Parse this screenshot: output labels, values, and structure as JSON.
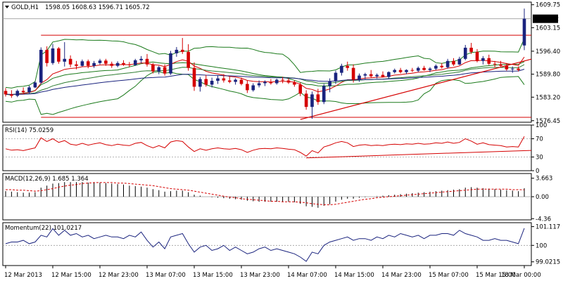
{
  "colors": {
    "background": "#ffffff",
    "frame": "#000000",
    "bull_candle": "#1a237e",
    "bear_candle": "#d50000",
    "bollinger": "#1b7a1b",
    "ma_fast": "#d50000",
    "ma_mid": "#2e7d32",
    "ma_slow": "#1a237e",
    "trendline": "#d50000",
    "rsi_line": "#d50000",
    "macd_hist": "#000000",
    "macd_signal": "#d50000",
    "momentum_line": "#1a237e",
    "level_line": "#9e9e9e",
    "price_tag_bg": "#000000",
    "price_tag_text": "#ffffff"
  },
  "chart_data": {
    "type": "candlestick",
    "symbol_label": "GOLD,H1",
    "ohlc_label": "1598.05 1608.63 1596.71 1605.72",
    "current_price": 1605.72,
    "current_price_label": "1605.72",
    "time_labels": [
      "12 Mar 2013",
      "12 Mar 15:00",
      "12 Mar 23:00",
      "13 Mar 07:00",
      "13 Mar 15:00",
      "13 Mar 23:00",
      "14 Mar 07:00",
      "14 Mar 15:00",
      "14 Mar 23:00",
      "15 Mar 07:00",
      "15 Mar 15:00",
      "18 Mar 00:00"
    ],
    "price_panel": {
      "ylim": [
        1576.0,
        1610.5
      ],
      "ticks": [
        1609.75,
        1603.15,
        1596.4,
        1589.8,
        1583.2,
        1576.45
      ],
      "tick_labels": [
        "1609.75",
        "1603.15",
        "1596.40",
        "1589.80",
        "1583.20",
        "1576.45"
      ],
      "candles": [
        [
          1585.0,
          1585.8,
          1583.4,
          1584.0
        ],
        [
          1584.0,
          1585.2,
          1583.0,
          1583.6
        ],
        [
          1583.6,
          1585.4,
          1583.2,
          1585.0
        ],
        [
          1585.0,
          1586.0,
          1584.0,
          1584.6
        ],
        [
          1584.6,
          1586.5,
          1584.2,
          1586.0
        ],
        [
          1586.0,
          1587.8,
          1585.8,
          1587.4
        ],
        [
          1587.4,
          1597.5,
          1587.0,
          1596.8
        ],
        [
          1596.8,
          1597.8,
          1592.0,
          1593.0
        ],
        [
          1593.0,
          1598.5,
          1592.5,
          1597.2
        ],
        [
          1597.2,
          1597.6,
          1592.8,
          1593.4
        ],
        [
          1593.4,
          1599.0,
          1592.0,
          1594.2
        ],
        [
          1594.2,
          1595.2,
          1591.8,
          1592.6
        ],
        [
          1592.6,
          1593.6,
          1591.2,
          1592.2
        ],
        [
          1592.2,
          1594.0,
          1592.0,
          1593.5
        ],
        [
          1593.5,
          1594.0,
          1591.5,
          1592.2
        ],
        [
          1592.2,
          1593.6,
          1591.6,
          1593.0
        ],
        [
          1593.0,
          1594.2,
          1592.6,
          1593.7
        ],
        [
          1593.7,
          1594.2,
          1592.2,
          1592.8
        ],
        [
          1592.8,
          1593.4,
          1591.6,
          1592.2
        ],
        [
          1592.2,
          1593.5,
          1591.8,
          1593.0
        ],
        [
          1593.0,
          1593.8,
          1592.2,
          1592.6
        ],
        [
          1592.6,
          1593.3,
          1591.8,
          1592.4
        ],
        [
          1592.4,
          1594.2,
          1592.2,
          1593.8
        ],
        [
          1593.8,
          1595.0,
          1593.0,
          1594.2
        ],
        [
          1594.2,
          1595.6,
          1592.0,
          1592.6
        ],
        [
          1592.6,
          1593.0,
          1590.0,
          1590.6
        ],
        [
          1590.6,
          1592.2,
          1589.8,
          1591.8
        ],
        [
          1591.8,
          1592.6,
          1589.4,
          1590.0
        ],
        [
          1590.0,
          1596.5,
          1589.6,
          1595.8
        ],
        [
          1595.8,
          1597.6,
          1594.8,
          1596.8
        ],
        [
          1596.8,
          1600.2,
          1595.6,
          1596.2
        ],
        [
          1596.2,
          1598.4,
          1590.8,
          1591.6
        ],
        [
          1591.6,
          1593.2,
          1585.0,
          1586.2
        ],
        [
          1586.2,
          1589.0,
          1584.8,
          1588.4
        ],
        [
          1588.4,
          1589.6,
          1586.2,
          1586.8
        ],
        [
          1586.8,
          1588.8,
          1586.0,
          1587.9
        ],
        [
          1587.9,
          1589.4,
          1587.0,
          1588.6
        ],
        [
          1588.6,
          1589.8,
          1587.4,
          1588.0
        ],
        [
          1588.0,
          1589.2,
          1587.2,
          1587.6
        ],
        [
          1587.6,
          1588.6,
          1586.8,
          1588.2
        ],
        [
          1588.2,
          1588.8,
          1586.6,
          1587.0
        ],
        [
          1587.0,
          1588.0,
          1584.4,
          1585.2
        ],
        [
          1585.2,
          1587.2,
          1584.8,
          1586.6
        ],
        [
          1586.6,
          1588.0,
          1586.0,
          1587.2
        ],
        [
          1587.2,
          1588.0,
          1586.4,
          1587.6
        ],
        [
          1587.6,
          1588.4,
          1586.8,
          1587.2
        ],
        [
          1587.2,
          1588.5,
          1586.8,
          1588.2
        ],
        [
          1588.2,
          1589.0,
          1587.2,
          1588.0
        ],
        [
          1588.0,
          1588.6,
          1587.0,
          1587.4
        ],
        [
          1587.4,
          1588.0,
          1586.2,
          1586.8
        ],
        [
          1586.8,
          1587.4,
          1583.5,
          1584.2
        ],
        [
          1584.2,
          1585.2,
          1579.6,
          1580.4
        ],
        [
          1580.4,
          1584.8,
          1577.0,
          1584.0
        ],
        [
          1584.0,
          1585.6,
          1581.0,
          1581.8
        ],
        [
          1581.8,
          1587.0,
          1581.2,
          1586.4
        ],
        [
          1586.4,
          1588.6,
          1584.6,
          1587.8
        ],
        [
          1587.8,
          1590.8,
          1587.0,
          1590.2
        ],
        [
          1590.2,
          1592.8,
          1589.4,
          1592.2
        ],
        [
          1592.2,
          1593.4,
          1590.8,
          1591.6
        ],
        [
          1591.6,
          1592.6,
          1587.4,
          1588.2
        ],
        [
          1588.2,
          1590.0,
          1587.6,
          1589.4
        ],
        [
          1589.4,
          1590.2,
          1588.4,
          1589.8
        ],
        [
          1589.8,
          1591.0,
          1588.8,
          1589.2
        ],
        [
          1589.2,
          1590.0,
          1588.6,
          1589.6
        ],
        [
          1589.6,
          1590.6,
          1589.0,
          1589.0
        ],
        [
          1589.0,
          1590.6,
          1588.6,
          1590.4
        ],
        [
          1590.4,
          1591.4,
          1590.0,
          1591.0
        ],
        [
          1591.0,
          1591.6,
          1590.0,
          1590.4
        ],
        [
          1590.4,
          1591.2,
          1589.8,
          1591.0
        ],
        [
          1591.0,
          1591.6,
          1590.4,
          1590.8
        ],
        [
          1590.8,
          1592.0,
          1590.4,
          1591.6
        ],
        [
          1591.6,
          1592.2,
          1590.8,
          1591.0
        ],
        [
          1591.0,
          1591.8,
          1590.4,
          1591.4
        ],
        [
          1591.4,
          1592.6,
          1591.0,
          1592.2
        ],
        [
          1592.2,
          1593.0,
          1591.4,
          1591.8
        ],
        [
          1591.8,
          1594.2,
          1591.4,
          1593.6
        ],
        [
          1593.6,
          1594.4,
          1592.2,
          1592.6
        ],
        [
          1592.6,
          1594.8,
          1592.4,
          1594.2
        ],
        [
          1594.2,
          1598.2,
          1593.8,
          1597.4
        ],
        [
          1597.4,
          1598.8,
          1595.6,
          1596.2
        ],
        [
          1596.2,
          1597.0,
          1593.2,
          1593.6
        ],
        [
          1593.6,
          1595.0,
          1592.6,
          1594.4
        ],
        [
          1594.4,
          1595.4,
          1592.4,
          1592.8
        ],
        [
          1592.8,
          1593.6,
          1591.8,
          1592.6
        ],
        [
          1592.6,
          1593.6,
          1592.0,
          1592.2
        ],
        [
          1592.2,
          1593.0,
          1590.8,
          1591.2
        ],
        [
          1591.2,
          1592.0,
          1590.2,
          1591.4
        ],
        [
          1591.4,
          1592.0,
          1590.6,
          1591.0
        ],
        [
          1598.05,
          1608.63,
          1596.71,
          1605.72
        ]
      ],
      "trendline": [
        [
          50,
          1576.8
        ],
        [
          88,
          1593.6
        ]
      ],
      "horizontal_lines": [
        1601.0,
        1577.4
      ]
    },
    "rsi": {
      "label": "RSI(14) 75.0259",
      "ylim": [
        0,
        100
      ],
      "ticks": [
        100,
        70,
        30,
        0
      ],
      "tick_labels": [
        "100",
        "70",
        "30",
        "0"
      ],
      "values": [
        48,
        45,
        46,
        44,
        47,
        50,
        72,
        64,
        70,
        62,
        66,
        58,
        56,
        60,
        56,
        59,
        61,
        57,
        55,
        58,
        56,
        55,
        60,
        62,
        55,
        50,
        55,
        50,
        63,
        66,
        64,
        52,
        42,
        48,
        45,
        48,
        50,
        48,
        47,
        49,
        46,
        40,
        45,
        48,
        49,
        48,
        50,
        49,
        47,
        46,
        40,
        32,
        44,
        39,
        52,
        56,
        61,
        64,
        61,
        53,
        56,
        57,
        55,
        56,
        55,
        57,
        58,
        57,
        59,
        58,
        60,
        58,
        59,
        61,
        60,
        63,
        60,
        62,
        70,
        65,
        58,
        61,
        57,
        56,
        55,
        52,
        53,
        52,
        75.0259
      ],
      "trendline": [
        [
          51,
          28
        ],
        [
          88,
          44
        ]
      ]
    },
    "macd": {
      "label": "MACD(12,26,9) 1.685 1.364",
      "ylim": [
        -4.6,
        4.6
      ],
      "ticks": [
        3.663,
        0.0,
        -4.36
      ],
      "tick_labels": [
        "3.663",
        "0.00",
        "-4.36"
      ],
      "histogram": [
        1.1,
        1.0,
        0.9,
        0.8,
        0.8,
        0.9,
        1.8,
        2.2,
        2.6,
        2.7,
        2.9,
        2.9,
        2.9,
        2.9,
        2.8,
        2.8,
        2.8,
        2.7,
        2.6,
        2.5,
        2.4,
        2.2,
        2.1,
        2.0,
        1.8,
        1.5,
        1.3,
        1.0,
        1.1,
        1.2,
        1.2,
        0.9,
        0.4,
        0.2,
        0.0,
        -0.1,
        -0.2,
        -0.3,
        -0.4,
        -0.5,
        -0.6,
        -0.8,
        -0.9,
        -1.0,
        -1.0,
        -1.0,
        -1.0,
        -1.0,
        -1.0,
        -1.1,
        -1.4,
        -1.9,
        -2.0,
        -2.2,
        -1.8,
        -1.5,
        -1.0,
        -0.6,
        -0.4,
        -0.4,
        -0.2,
        -0.1,
        0.0,
        0.1,
        0.2,
        0.3,
        0.4,
        0.5,
        0.6,
        0.7,
        0.8,
        0.9,
        1.0,
        1.1,
        1.2,
        1.3,
        1.4,
        1.5,
        1.8,
        1.9,
        1.8,
        1.7,
        1.6,
        1.5,
        1.4,
        1.3,
        1.2,
        1.1,
        1.685
      ],
      "signal": [
        1.4,
        1.4,
        1.3,
        1.3,
        1.2,
        1.1,
        1.2,
        1.4,
        1.6,
        1.9,
        2.1,
        2.3,
        2.4,
        2.6,
        2.7,
        2.8,
        2.8,
        2.8,
        2.8,
        2.7,
        2.7,
        2.6,
        2.5,
        2.4,
        2.3,
        2.2,
        2.0,
        1.8,
        1.6,
        1.5,
        1.4,
        1.3,
        1.1,
        0.9,
        0.7,
        0.5,
        0.3,
        0.1,
        -0.1,
        -0.2,
        -0.4,
        -0.5,
        -0.6,
        -0.7,
        -0.8,
        -0.9,
        -0.9,
        -1.0,
        -1.0,
        -1.0,
        -1.1,
        -1.2,
        -1.4,
        -1.5,
        -1.6,
        -1.6,
        -1.5,
        -1.3,
        -1.1,
        -0.9,
        -0.7,
        -0.5,
        -0.4,
        -0.2,
        -0.1,
        0.0,
        0.1,
        0.2,
        0.3,
        0.4,
        0.5,
        0.6,
        0.7,
        0.8,
        0.9,
        1.0,
        1.1,
        1.2,
        1.3,
        1.4,
        1.5,
        1.5,
        1.5,
        1.5,
        1.5,
        1.5,
        1.4,
        1.4,
        1.364
      ]
    },
    "momentum": {
      "label": "Momentum(22) 101.0217",
      "ylim": [
        98.8,
        101.35
      ],
      "ticks": [
        101.117,
        100.0,
        99.0215
      ],
      "tick_labels": [
        "101.117",
        "100",
        "99.0215"
      ],
      "values": [
        100.1,
        100.2,
        100.2,
        100.3,
        100.1,
        100.2,
        100.6,
        100.5,
        101.0,
        100.6,
        100.9,
        100.6,
        100.7,
        100.5,
        100.6,
        100.4,
        100.5,
        100.6,
        100.5,
        100.5,
        100.4,
        100.6,
        100.5,
        100.8,
        100.3,
        99.9,
        100.2,
        99.8,
        100.5,
        100.6,
        100.7,
        100.1,
        99.6,
        99.9,
        100.0,
        99.7,
        99.8,
        100.0,
        99.7,
        99.9,
        99.7,
        99.5,
        99.6,
        99.8,
        99.9,
        99.7,
        99.8,
        99.7,
        99.6,
        99.5,
        99.3,
        99.05,
        99.6,
        99.5,
        100.0,
        100.2,
        100.3,
        100.4,
        100.5,
        100.3,
        100.4,
        100.4,
        100.3,
        100.5,
        100.4,
        100.6,
        100.5,
        100.7,
        100.6,
        100.5,
        100.6,
        100.4,
        100.6,
        100.6,
        100.7,
        100.7,
        100.6,
        100.9,
        100.7,
        100.6,
        100.5,
        100.3,
        100.3,
        100.4,
        100.3,
        100.3,
        100.2,
        100.1,
        101.0217
      ]
    }
  }
}
